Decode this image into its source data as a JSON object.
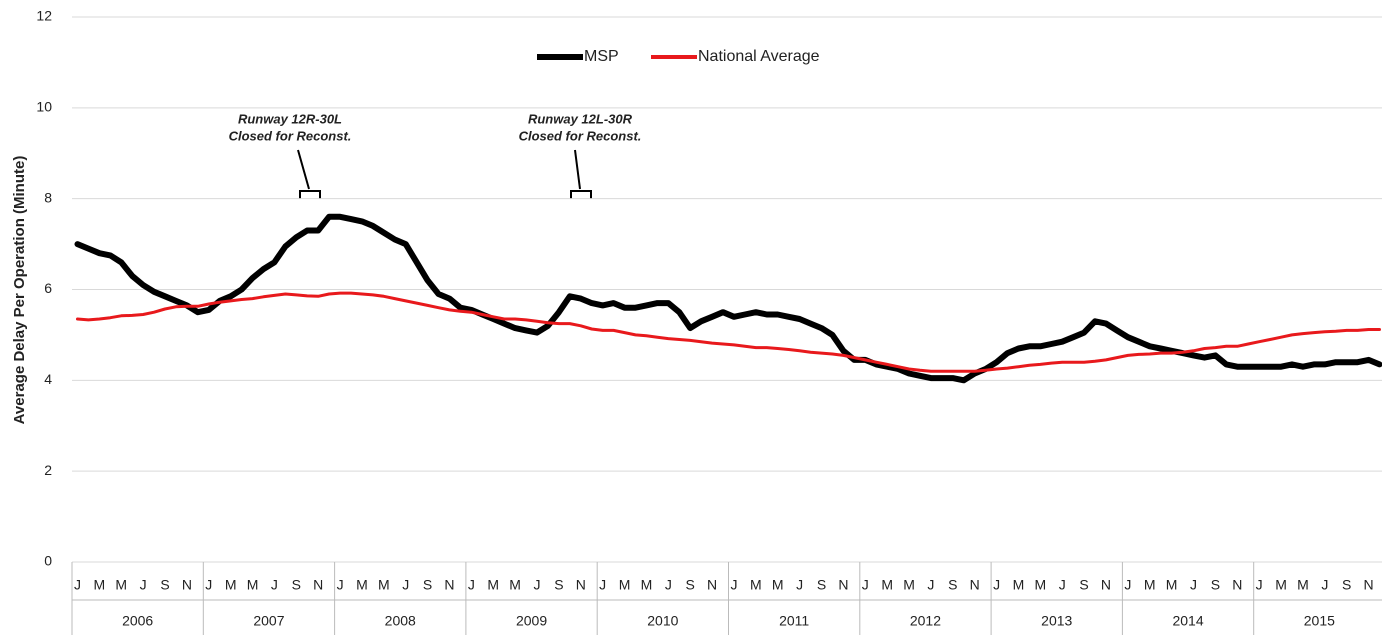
{
  "chart_data": {
    "type": "line",
    "y_label": "Average Delay Per Operation (Minute)",
    "categories": [
      "J",
      null,
      "M",
      null,
      "M",
      null,
      "J",
      null,
      "S",
      null,
      "N",
      null,
      "J",
      null,
      "M",
      null,
      "M",
      null,
      "J",
      null,
      "S",
      null,
      "N",
      null,
      "J",
      null,
      "M",
      null,
      "M",
      null,
      "J",
      null,
      "S",
      null,
      "N",
      null,
      "J",
      null,
      "M",
      null,
      "M",
      null,
      "J",
      null,
      "S",
      null,
      "N",
      null,
      "J",
      null,
      "M",
      null,
      "M",
      null,
      "J",
      null,
      "S",
      null,
      "N",
      null,
      "J",
      null,
      "M",
      null,
      "M",
      null,
      "J",
      null,
      "S",
      null,
      "N",
      null,
      "J",
      null,
      "M",
      null,
      "M",
      null,
      "J",
      null,
      "S",
      null,
      "N",
      null,
      "J",
      null,
      "M",
      null,
      "M",
      null,
      "J",
      null,
      "S",
      null,
      "N",
      null,
      "J",
      null,
      "M",
      null,
      "M",
      null,
      "J",
      null,
      "S",
      null,
      "N",
      null,
      "J",
      null,
      "M",
      null,
      "M",
      null,
      "J",
      null,
      "S",
      null,
      "N",
      null
    ],
    "groups": [
      "2006",
      "2007",
      "2008",
      "2009",
      "2010",
      "2011",
      "2012",
      "2013",
      "2014",
      "2015"
    ],
    "series": [
      {
        "name": "MSP",
        "color": "#000000",
        "values": [
          7.0,
          6.9,
          6.8,
          6.75,
          6.6,
          6.3,
          6.1,
          5.95,
          5.85,
          5.75,
          5.65,
          5.5,
          5.55,
          5.75,
          5.85,
          6.0,
          6.25,
          6.45,
          6.6,
          6.95,
          7.15,
          7.3,
          7.3,
          7.6,
          7.6,
          7.55,
          7.5,
          7.4,
          7.25,
          7.1,
          7.0,
          6.6,
          6.2,
          5.9,
          5.8,
          5.6,
          5.55,
          5.45,
          5.35,
          5.25,
          5.15,
          5.1,
          5.05,
          5.2,
          5.5,
          5.85,
          5.8,
          5.7,
          5.65,
          5.7,
          5.6,
          5.6,
          5.65,
          5.7,
          5.7,
          5.5,
          5.15,
          5.3,
          5.4,
          5.5,
          5.4,
          5.45,
          5.5,
          5.45,
          5.45,
          5.4,
          5.35,
          5.25,
          5.15,
          5.0,
          4.65,
          4.45,
          4.45,
          4.35,
          4.3,
          4.25,
          4.15,
          4.1,
          4.05,
          4.05,
          4.05,
          4.0,
          4.15,
          4.25,
          4.4,
          4.6,
          4.7,
          4.75,
          4.75,
          4.8,
          4.85,
          4.95,
          5.05,
          5.3,
          5.25,
          5.1,
          4.95,
          4.85,
          4.75,
          4.7,
          4.65,
          4.6,
          4.55,
          4.5,
          4.55,
          4.35,
          4.3,
          4.3,
          4.3,
          4.3,
          4.3,
          4.35,
          4.3,
          4.35,
          4.35,
          4.4,
          4.4,
          4.4,
          4.45,
          4.35
        ]
      },
      {
        "name": "National Average",
        "color": "#e8191c",
        "values": [
          5.35,
          5.33,
          5.35,
          5.38,
          5.42,
          5.43,
          5.45,
          5.5,
          5.57,
          5.62,
          5.63,
          5.63,
          5.68,
          5.72,
          5.75,
          5.78,
          5.8,
          5.84,
          5.87,
          5.9,
          5.88,
          5.86,
          5.85,
          5.9,
          5.92,
          5.92,
          5.9,
          5.88,
          5.85,
          5.8,
          5.75,
          5.7,
          5.65,
          5.6,
          5.55,
          5.52,
          5.5,
          5.45,
          5.4,
          5.35,
          5.35,
          5.33,
          5.3,
          5.27,
          5.25,
          5.25,
          5.2,
          5.13,
          5.1,
          5.1,
          5.05,
          5.0,
          4.98,
          4.95,
          4.92,
          4.9,
          4.88,
          4.85,
          4.82,
          4.8,
          4.78,
          4.75,
          4.72,
          4.72,
          4.7,
          4.68,
          4.65,
          4.62,
          4.6,
          4.58,
          4.55,
          4.5,
          4.45,
          4.4,
          4.35,
          4.3,
          4.25,
          4.22,
          4.2,
          4.2,
          4.2,
          4.2,
          4.2,
          4.22,
          4.25,
          4.27,
          4.3,
          4.33,
          4.35,
          4.38,
          4.4,
          4.4,
          4.4,
          4.42,
          4.45,
          4.5,
          4.55,
          4.57,
          4.58,
          4.6,
          4.6,
          4.62,
          4.65,
          4.7,
          4.72,
          4.75,
          4.75,
          4.8,
          4.85,
          4.9,
          4.95,
          5.0,
          5.03,
          5.05,
          5.07,
          5.08,
          5.1,
          5.1,
          5.12,
          5.12
        ]
      }
    ],
    "ylim": [
      0,
      12
    ],
    "yticks": [
      0,
      2,
      4,
      6,
      8,
      10,
      12
    ],
    "grid": true,
    "legend": "top",
    "annotations": [
      {
        "lines": [
          "Runway 12R-30L",
          "Closed for Reconst."
        ]
      },
      {
        "lines": [
          "Runway 12L-30R",
          "Closed for Reconst."
        ]
      }
    ]
  }
}
